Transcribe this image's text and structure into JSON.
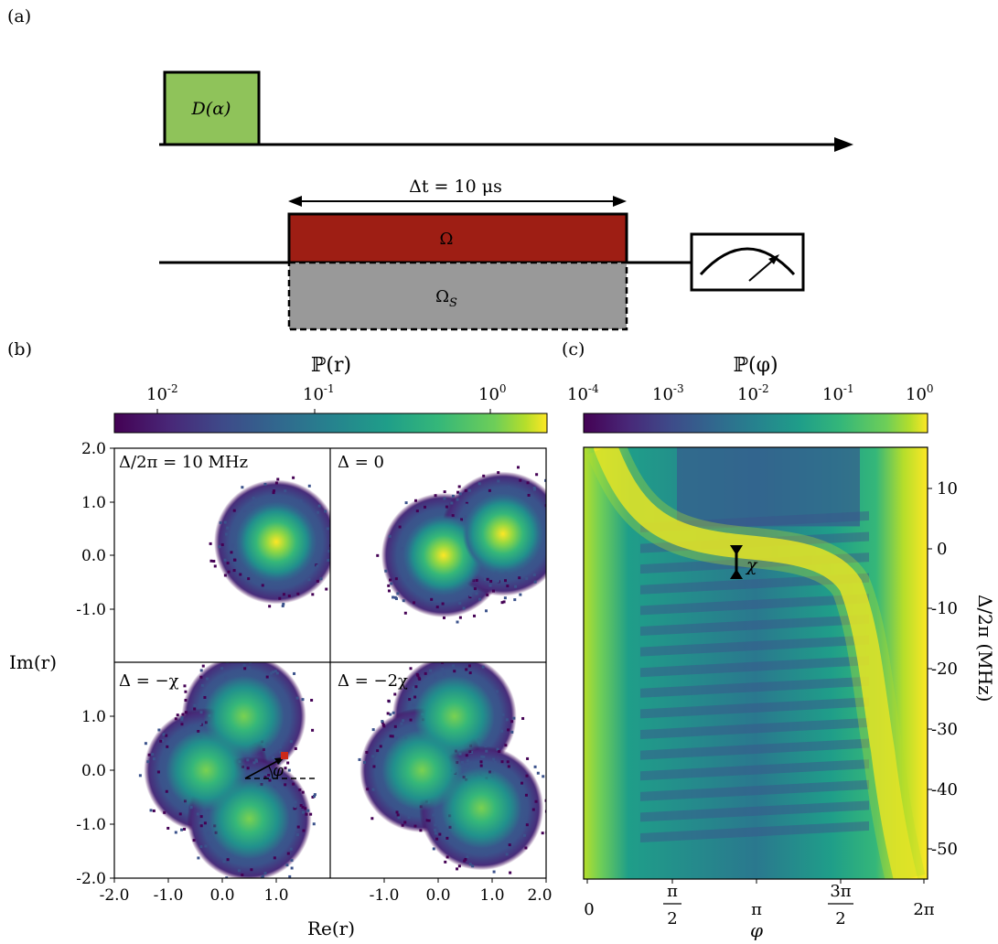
{
  "panel_labels": {
    "a": "(a)",
    "b": "(b)",
    "c": "(c)"
  },
  "sequence": {
    "displacement_label": "D(α)",
    "pulse_duration_label": "Δt = 10 μs",
    "drive_label": "Ω",
    "stark_label": "Ω",
    "stark_sub": "S",
    "colors": {
      "displacement": "#8fc35a",
      "drive": "#9e1e14",
      "stark": "#999999"
    }
  },
  "panel_b": {
    "colorbar_title": "ℙ(r)",
    "colorbar_ticks": [
      {
        "base": "10",
        "exp": "-2"
      },
      {
        "base": "10",
        "exp": "-1"
      },
      {
        "base": "10",
        "exp": "0"
      }
    ],
    "ylabel": "Im(r)",
    "xlabel": "Re(r)",
    "subplots": [
      {
        "label": "Δ/2π = 10 MHz"
      },
      {
        "label": "Δ = 0"
      },
      {
        "label": "Δ = −χ",
        "angle_label": "φ"
      },
      {
        "label": "Δ = −2χ"
      }
    ],
    "y_ticks_top": [
      "2.0",
      "1.0",
      "0.0",
      "-1.0"
    ],
    "y_ticks_bottom": [
      "1.0",
      "0.0",
      "-1.0",
      "-2.0"
    ],
    "x_ticks_left": [
      "-2.0",
      "-1.0",
      "0.0",
      "1.0"
    ],
    "x_ticks_right": [
      "-1.0",
      "0.0",
      "1.0",
      "2.0"
    ]
  },
  "panel_c": {
    "colorbar_title": "ℙ(φ)",
    "colorbar_ticks": [
      {
        "base": "10",
        "exp": "-4"
      },
      {
        "base": "10",
        "exp": "-3"
      },
      {
        "base": "10",
        "exp": "-2"
      },
      {
        "base": "10",
        "exp": "-1"
      },
      {
        "base": "10",
        "exp": "0"
      }
    ],
    "ylabel": "Δ/2π (MHz)",
    "xlabel": "φ",
    "chi_label": "χ",
    "y_ticks": [
      "10",
      "0",
      "-10",
      "-20",
      "-30",
      "-40",
      "-50"
    ],
    "x_ticks": [
      "0",
      "π/2",
      "π",
      "3π/2",
      "2π"
    ]
  },
  "chart_data": [
    {
      "type": "heatmap",
      "title": "ℙ(r)",
      "xlabel": "Re(r)",
      "ylabel": "Im(r)",
      "xlim": [
        -2.0,
        2.0
      ],
      "ylim": [
        -2.0,
        2.0
      ],
      "scale": "log",
      "colorbar_range": [
        0.005,
        2
      ],
      "subplots": [
        {
          "label": "Δ/2π = 10 MHz",
          "peaks": [
            {
              "re": 1.0,
              "im": 0.25
            }
          ]
        },
        {
          "label": "Δ = 0",
          "peaks": [
            {
              "re": 0.1,
              "im": 0.0
            },
            {
              "re": 1.2,
              "im": 0.4
            }
          ]
        },
        {
          "label": "Δ = −χ",
          "peaks": [
            {
              "re": 0.4,
              "im": 1.0
            },
            {
              "re": -0.3,
              "im": 0.0
            },
            {
              "re": 0.5,
              "im": -0.9
            }
          ]
        },
        {
          "label": "Δ = −2χ",
          "peaks": [
            {
              "re": 0.3,
              "im": 1.0
            },
            {
              "re": -0.3,
              "im": 0.0
            },
            {
              "re": 0.8,
              "im": -0.7
            }
          ]
        }
      ]
    },
    {
      "type": "heatmap",
      "title": "ℙ(φ)",
      "xlabel": "φ",
      "ylabel": "Δ/2π (MHz)",
      "xlim": [
        0,
        6.283
      ],
      "ylim": [
        -55,
        16
      ],
      "scale": "log",
      "colorbar_range": [
        0.0001,
        1
      ]
    }
  ]
}
